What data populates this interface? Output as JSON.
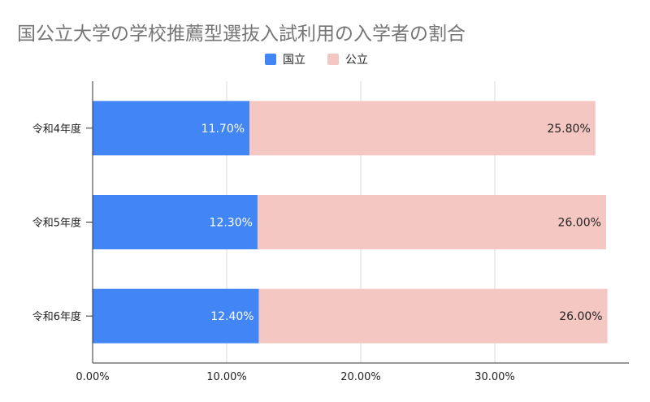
{
  "chart_data": {
    "type": "bar",
    "orientation": "horizontal",
    "stacked": true,
    "title": "国公立大学の学校推薦型選抜入試利用の入学者の割合",
    "categories": [
      "令和4年度",
      "令和5年度",
      "令和6年度"
    ],
    "series": [
      {
        "name": "国立",
        "values": [
          11.7,
          12.3,
          12.4
        ],
        "labels": [
          "11.70%",
          "12.30%",
          "12.40%"
        ],
        "color": "#4285f4",
        "label_color": "#ffffff"
      },
      {
        "name": "公立",
        "values": [
          25.8,
          26.0,
          26.0
        ],
        "labels": [
          "25.80%",
          "26.00%",
          "26.00%"
        ],
        "color": "#f4c7c3",
        "label_color": "#222222"
      }
    ],
    "xlim": [
      0,
      40
    ],
    "x_ticks": [
      0,
      10,
      20,
      30
    ],
    "x_tick_labels": [
      "0.00%",
      "10.00%",
      "20.00%",
      "30.00%"
    ],
    "xlabel": "",
    "ylabel": "",
    "grid": "vertical",
    "legend_position": "top-center"
  }
}
